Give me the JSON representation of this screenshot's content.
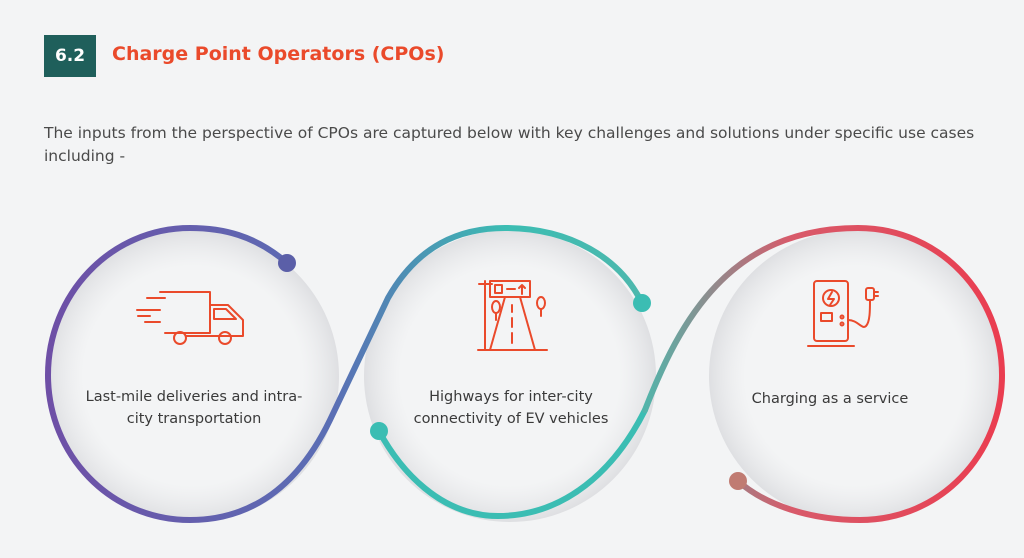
{
  "section": {
    "number": "6.2",
    "title": "Charge Point Operators (CPOs)"
  },
  "intro_text": "The inputs from the perspective of CPOs are captured below with key challenges and solutions under specific use cases including -",
  "use_cases": [
    {
      "icon": "delivery-truck-icon",
      "label": "Last-mile deliveries and intra-city transportation"
    },
    {
      "icon": "highway-icon",
      "label": "Highways for inter-city connectivity of EV vehicles"
    },
    {
      "icon": "charging-station-icon",
      "label": "Charging as a service"
    }
  ],
  "colors": {
    "badge_bg": "#1f5f5b",
    "title": "#ea4a2b",
    "icon": "#ea4a2b",
    "purple": "#6e4fa6",
    "teal": "#3bbdb3",
    "red": "#ea3d50"
  }
}
